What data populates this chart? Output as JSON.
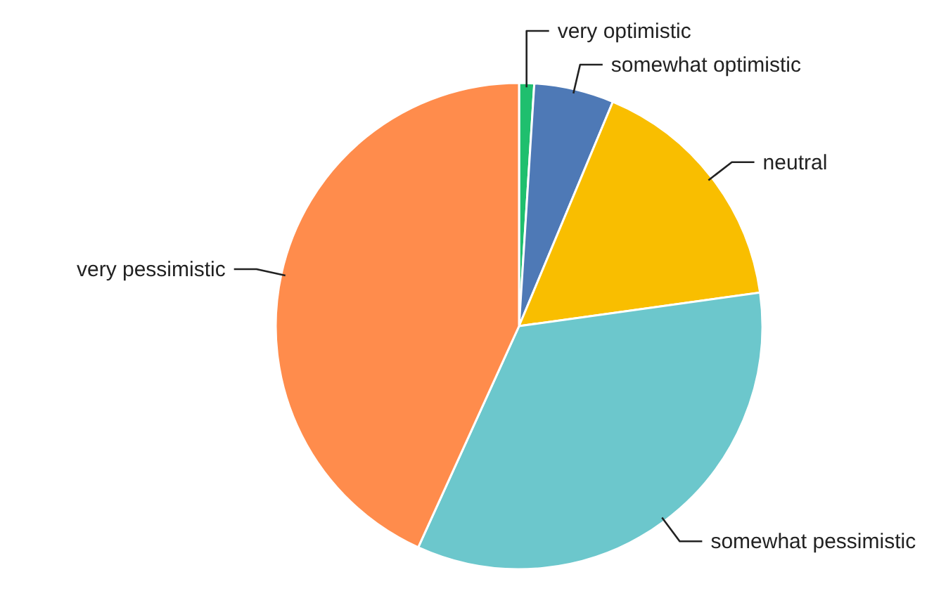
{
  "chart_data": {
    "type": "pie",
    "categories": [
      "very optimistic",
      "somewhat optimistic",
      "neutral",
      "somewhat pessimistic",
      "very pessimistic"
    ],
    "values": [
      1,
      5.3,
      16.5,
      34,
      43.2
    ],
    "colors": [
      "#1fbf6e",
      "#4e79b6",
      "#f9be00",
      "#6cc7cc",
      "#ff8c4c"
    ]
  }
}
